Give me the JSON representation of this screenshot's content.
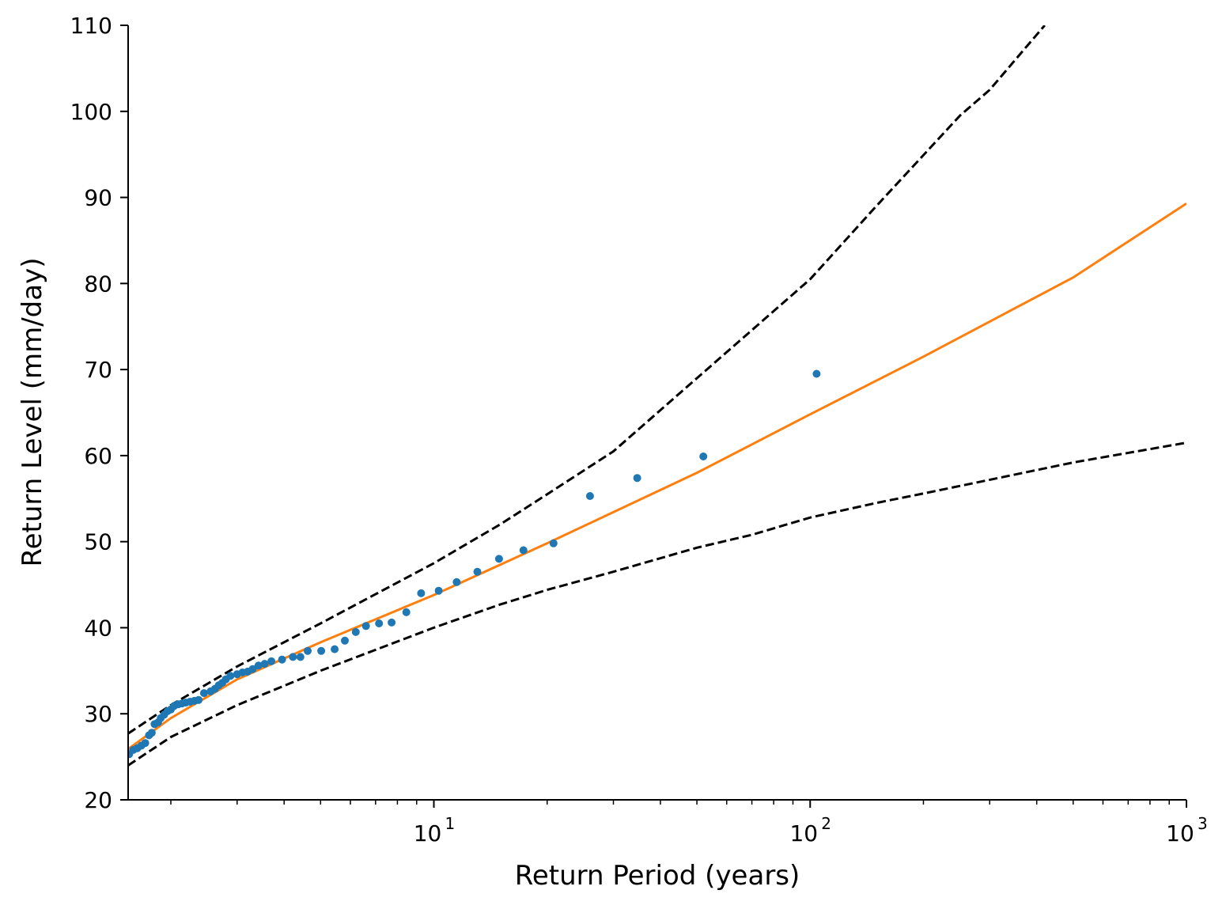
{
  "chart_data": {
    "type": "scatter",
    "title": "",
    "xlabel": "Return Period (years)",
    "ylabel": "Return Level (mm/day)",
    "xscale": "log",
    "xlim": [
      1.54,
      1000
    ],
    "ylim": [
      20,
      110
    ],
    "grid": false,
    "legend": "none",
    "xticks": [
      {
        "value": 10,
        "base": "10",
        "exp": "1"
      },
      {
        "value": 100,
        "base": "10",
        "exp": "2"
      },
      {
        "value": 1000,
        "base": "10",
        "exp": "3"
      }
    ],
    "yticks": [
      20,
      30,
      40,
      50,
      60,
      70,
      80,
      90,
      100,
      110
    ],
    "colors": {
      "points": "#1f77b4",
      "fit": "#ff7f0e",
      "ci": "#000000"
    },
    "series": [
      {
        "kind": "scatter",
        "points": [
          [
            1.55,
            25.3
          ],
          [
            1.59,
            25.8
          ],
          [
            1.63,
            26.0
          ],
          [
            1.67,
            26.3
          ],
          [
            1.71,
            26.6
          ],
          [
            1.75,
            27.5
          ],
          [
            1.78,
            27.8
          ],
          [
            1.81,
            28.8
          ],
          [
            1.85,
            29.0
          ],
          [
            1.88,
            29.5
          ],
          [
            1.92,
            29.9
          ],
          [
            1.96,
            30.3
          ],
          [
            2.0,
            30.5
          ],
          [
            2.04,
            30.9
          ],
          [
            2.09,
            31.1
          ],
          [
            2.14,
            31.2
          ],
          [
            2.19,
            31.3
          ],
          [
            2.25,
            31.4
          ],
          [
            2.31,
            31.5
          ],
          [
            2.37,
            31.6
          ],
          [
            2.45,
            32.4
          ],
          [
            2.55,
            32.6
          ],
          [
            2.62,
            32.9
          ],
          [
            2.68,
            33.3
          ],
          [
            2.74,
            33.6
          ],
          [
            2.8,
            34.0
          ],
          [
            2.88,
            34.4
          ],
          [
            3.0,
            34.6
          ],
          [
            3.1,
            34.8
          ],
          [
            3.2,
            34.9
          ],
          [
            3.3,
            35.2
          ],
          [
            3.42,
            35.6
          ],
          [
            3.55,
            35.8
          ],
          [
            3.7,
            36.1
          ],
          [
            3.95,
            36.3
          ],
          [
            4.22,
            36.6
          ],
          [
            4.42,
            36.6
          ],
          [
            4.62,
            37.3
          ],
          [
            5.02,
            37.3
          ],
          [
            5.45,
            37.5
          ],
          [
            5.8,
            38.5
          ],
          [
            6.2,
            39.5
          ],
          [
            6.6,
            40.2
          ],
          [
            7.15,
            40.5
          ],
          [
            7.72,
            40.6
          ],
          [
            8.45,
            41.8
          ],
          [
            9.25,
            44.0
          ],
          [
            10.3,
            44.3
          ],
          [
            11.5,
            45.3
          ],
          [
            13.05,
            46.5
          ],
          [
            14.9,
            48.0
          ],
          [
            17.3,
            49.0
          ],
          [
            20.8,
            49.8
          ],
          [
            26.0,
            55.3
          ],
          [
            34.7,
            57.4
          ],
          [
            52.0,
            59.9
          ],
          [
            104.0,
            69.5
          ]
        ]
      },
      {
        "kind": "line",
        "style": "solid",
        "points": [
          [
            1.54,
            25.9
          ],
          [
            2,
            29.5
          ],
          [
            3,
            34.0
          ],
          [
            5,
            38.3
          ],
          [
            10,
            43.8
          ],
          [
            20,
            49.8
          ],
          [
            50,
            58.0
          ],
          [
            100,
            64.8
          ],
          [
            200,
            71.5
          ],
          [
            500,
            80.7
          ],
          [
            1000,
            89.3
          ]
        ]
      },
      {
        "kind": "line",
        "style": "dashed",
        "points": [
          [
            1.54,
            27.7
          ],
          [
            2,
            31.0
          ],
          [
            3,
            35.5
          ],
          [
            5,
            40.5
          ],
          [
            10,
            47.5
          ],
          [
            15,
            52.0
          ],
          [
            20,
            55.5
          ],
          [
            30,
            60.5
          ],
          [
            50,
            69.0
          ],
          [
            100,
            80.5
          ],
          [
            150,
            89.0
          ],
          [
            250,
            99.5
          ],
          [
            300,
            102.5
          ],
          [
            420,
            110.0
          ]
        ]
      },
      {
        "kind": "line",
        "style": "dashed",
        "points": [
          [
            1.54,
            24.0
          ],
          [
            2,
            27.3
          ],
          [
            3,
            31.0
          ],
          [
            5,
            35.0
          ],
          [
            10,
            40.0
          ],
          [
            15,
            42.7
          ],
          [
            20,
            44.4
          ],
          [
            30,
            46.5
          ],
          [
            50,
            49.3
          ],
          [
            70,
            50.8
          ],
          [
            100,
            52.8
          ],
          [
            150,
            54.5
          ],
          [
            200,
            55.6
          ],
          [
            500,
            59.2
          ],
          [
            1000,
            61.5
          ]
        ]
      }
    ]
  }
}
